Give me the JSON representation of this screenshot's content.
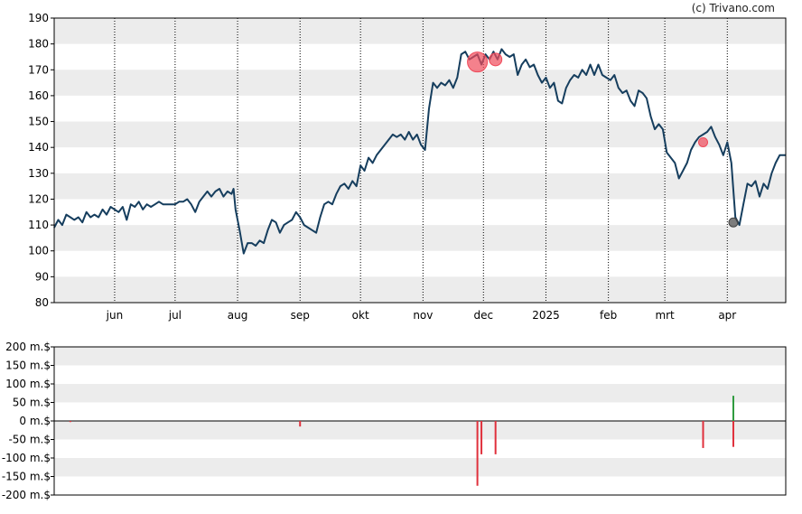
{
  "copyright": "(c) Trivano.com",
  "chart_data": [
    {
      "type": "line",
      "title": "",
      "xlabel": "",
      "ylabel": "",
      "ylim": [
        80,
        190
      ],
      "yticks": [
        80,
        90,
        100,
        110,
        120,
        130,
        140,
        150,
        160,
        170,
        180,
        190
      ],
      "xlim": [
        "2024-05-02",
        "2025-04-30"
      ],
      "xticks": [
        {
          "date": "2024-06-01",
          "label": "jun"
        },
        {
          "date": "2024-07-01",
          "label": "jul"
        },
        {
          "date": "2024-08-01",
          "label": "aug"
        },
        {
          "date": "2024-09-01",
          "label": "sep"
        },
        {
          "date": "2024-10-01",
          "label": "okt"
        },
        {
          "date": "2024-11-01",
          "label": "nov"
        },
        {
          "date": "2024-12-01",
          "label": "dec"
        },
        {
          "date": "2025-01-01",
          "label": "2025"
        },
        {
          "date": "2025-02-01",
          "label": "feb"
        },
        {
          "date": "2025-03-01",
          "label": "mrt"
        },
        {
          "date": "2025-04-01",
          "label": "apr"
        }
      ],
      "grid": "horizontal bands, dotted vertical month lines",
      "line_color": "#163e5e",
      "band_color": "#ececec",
      "series": [
        {
          "points": [
            [
              "2024-05-02",
              109
            ],
            [
              "2024-05-04",
              112
            ],
            [
              "2024-05-06",
              110
            ],
            [
              "2024-05-08",
              114
            ],
            [
              "2024-05-10",
              113
            ],
            [
              "2024-05-12",
              112
            ],
            [
              "2024-05-14",
              113
            ],
            [
              "2024-05-16",
              111
            ],
            [
              "2024-05-18",
              115
            ],
            [
              "2024-05-20",
              113
            ],
            [
              "2024-05-22",
              114
            ],
            [
              "2024-05-24",
              113
            ],
            [
              "2024-05-26",
              116
            ],
            [
              "2024-05-28",
              114
            ],
            [
              "2024-05-30",
              117
            ],
            [
              "2024-06-01",
              116
            ],
            [
              "2024-06-03",
              115
            ],
            [
              "2024-06-05",
              117
            ],
            [
              "2024-06-07",
              112
            ],
            [
              "2024-06-09",
              118
            ],
            [
              "2024-06-11",
              117
            ],
            [
              "2024-06-13",
              119
            ],
            [
              "2024-06-15",
              116
            ],
            [
              "2024-06-17",
              118
            ],
            [
              "2024-06-19",
              117
            ],
            [
              "2024-06-21",
              118
            ],
            [
              "2024-06-23",
              119
            ],
            [
              "2024-06-25",
              118
            ],
            [
              "2024-06-27",
              118
            ],
            [
              "2024-06-29",
              118
            ],
            [
              "2024-07-01",
              118
            ],
            [
              "2024-07-03",
              119
            ],
            [
              "2024-07-05",
              119
            ],
            [
              "2024-07-07",
              120
            ],
            [
              "2024-07-09",
              118
            ],
            [
              "2024-07-11",
              115
            ],
            [
              "2024-07-13",
              119
            ],
            [
              "2024-07-15",
              121
            ],
            [
              "2024-07-17",
              123
            ],
            [
              "2024-07-19",
              121
            ],
            [
              "2024-07-21",
              123
            ],
            [
              "2024-07-23",
              124
            ],
            [
              "2024-07-25",
              121
            ],
            [
              "2024-07-27",
              123
            ],
            [
              "2024-07-29",
              122
            ],
            [
              "2024-07-30",
              124
            ],
            [
              "2024-07-31",
              116
            ],
            [
              "2024-08-02",
              108
            ],
            [
              "2024-08-04",
              99
            ],
            [
              "2024-08-06",
              103
            ],
            [
              "2024-08-08",
              103
            ],
            [
              "2024-08-10",
              102
            ],
            [
              "2024-08-12",
              104
            ],
            [
              "2024-08-14",
              103
            ],
            [
              "2024-08-16",
              108
            ],
            [
              "2024-08-18",
              112
            ],
            [
              "2024-08-20",
              111
            ],
            [
              "2024-08-22",
              107
            ],
            [
              "2024-08-24",
              110
            ],
            [
              "2024-08-26",
              111
            ],
            [
              "2024-08-28",
              112
            ],
            [
              "2024-08-30",
              115
            ],
            [
              "2024-09-01",
              113
            ],
            [
              "2024-09-03",
              110
            ],
            [
              "2024-09-05",
              109
            ],
            [
              "2024-09-07",
              108
            ],
            [
              "2024-09-09",
              107
            ],
            [
              "2024-09-11",
              113
            ],
            [
              "2024-09-13",
              118
            ],
            [
              "2024-09-15",
              119
            ],
            [
              "2024-09-17",
              118
            ],
            [
              "2024-09-19",
              122
            ],
            [
              "2024-09-21",
              125
            ],
            [
              "2024-09-23",
              126
            ],
            [
              "2024-09-25",
              124
            ],
            [
              "2024-09-27",
              127
            ],
            [
              "2024-09-29",
              125
            ],
            [
              "2024-10-01",
              133
            ],
            [
              "2024-10-03",
              131
            ],
            [
              "2024-10-05",
              136
            ],
            [
              "2024-10-07",
              134
            ],
            [
              "2024-10-09",
              137
            ],
            [
              "2024-10-11",
              139
            ],
            [
              "2024-10-13",
              141
            ],
            [
              "2024-10-15",
              143
            ],
            [
              "2024-10-17",
              145
            ],
            [
              "2024-10-19",
              144
            ],
            [
              "2024-10-21",
              145
            ],
            [
              "2024-10-23",
              143
            ],
            [
              "2024-10-25",
              146
            ],
            [
              "2024-10-27",
              143
            ],
            [
              "2024-10-29",
              145
            ],
            [
              "2024-10-31",
              141
            ],
            [
              "2024-11-02",
              139
            ],
            [
              "2024-11-04",
              155
            ],
            [
              "2024-11-06",
              165
            ],
            [
              "2024-11-08",
              163
            ],
            [
              "2024-11-10",
              165
            ],
            [
              "2024-11-12",
              164
            ],
            [
              "2024-11-14",
              166
            ],
            [
              "2024-11-16",
              163
            ],
            [
              "2024-11-18",
              167
            ],
            [
              "2024-11-20",
              176
            ],
            [
              "2024-11-22",
              177
            ],
            [
              "2024-11-24",
              174
            ],
            [
              "2024-11-26",
              175
            ],
            [
              "2024-11-28",
              176
            ],
            [
              "2024-11-30",
              172
            ],
            [
              "2024-12-02",
              176
            ],
            [
              "2024-12-04",
              174
            ],
            [
              "2024-12-06",
              177
            ],
            [
              "2024-12-08",
              174
            ],
            [
              "2024-12-10",
              178
            ],
            [
              "2024-12-12",
              176
            ],
            [
              "2024-12-14",
              175
            ],
            [
              "2024-12-16",
              176
            ],
            [
              "2024-12-18",
              168
            ],
            [
              "2024-12-20",
              172
            ],
            [
              "2024-12-22",
              174
            ],
            [
              "2024-12-24",
              171
            ],
            [
              "2024-12-26",
              172
            ],
            [
              "2024-12-28",
              168
            ],
            [
              "2024-12-30",
              165
            ],
            [
              "2025-01-01",
              167
            ],
            [
              "2025-01-03",
              163
            ],
            [
              "2025-01-05",
              165
            ],
            [
              "2025-01-07",
              158
            ],
            [
              "2025-01-09",
              157
            ],
            [
              "2025-01-11",
              163
            ],
            [
              "2025-01-13",
              166
            ],
            [
              "2025-01-15",
              168
            ],
            [
              "2025-01-17",
              167
            ],
            [
              "2025-01-19",
              170
            ],
            [
              "2025-01-21",
              168
            ],
            [
              "2025-01-23",
              172
            ],
            [
              "2025-01-25",
              168
            ],
            [
              "2025-01-27",
              172
            ],
            [
              "2025-01-29",
              168
            ],
            [
              "2025-01-31",
              167
            ],
            [
              "2025-02-02",
              166
            ],
            [
              "2025-02-04",
              168
            ],
            [
              "2025-02-06",
              163
            ],
            [
              "2025-02-08",
              161
            ],
            [
              "2025-02-10",
              162
            ],
            [
              "2025-02-12",
              158
            ],
            [
              "2025-02-14",
              156
            ],
            [
              "2025-02-16",
              162
            ],
            [
              "2025-02-18",
              161
            ],
            [
              "2025-02-20",
              159
            ],
            [
              "2025-02-22",
              152
            ],
            [
              "2025-02-24",
              147
            ],
            [
              "2025-02-26",
              149
            ],
            [
              "2025-02-28",
              147
            ],
            [
              "2025-03-02",
              138
            ],
            [
              "2025-03-04",
              136
            ],
            [
              "2025-03-06",
              134
            ],
            [
              "2025-03-08",
              128
            ],
            [
              "2025-03-10",
              131
            ],
            [
              "2025-03-12",
              134
            ],
            [
              "2025-03-14",
              139
            ],
            [
              "2025-03-16",
              142
            ],
            [
              "2025-03-18",
              144
            ],
            [
              "2025-03-20",
              145
            ],
            [
              "2025-03-22",
              146
            ],
            [
              "2025-03-24",
              148
            ],
            [
              "2025-03-26",
              144
            ],
            [
              "2025-03-28",
              141
            ],
            [
              "2025-03-30",
              137
            ],
            [
              "2025-04-01",
              142
            ],
            [
              "2025-04-03",
              134
            ],
            [
              "2025-04-05",
              113
            ],
            [
              "2025-04-07",
              110
            ],
            [
              "2025-04-09",
              118
            ],
            [
              "2025-04-11",
              126
            ],
            [
              "2025-04-13",
              125
            ],
            [
              "2025-04-15",
              127
            ],
            [
              "2025-04-17",
              121
            ],
            [
              "2025-04-19",
              126
            ],
            [
              "2025-04-21",
              124
            ],
            [
              "2025-04-23",
              130
            ],
            [
              "2025-04-25",
              134
            ],
            [
              "2025-04-27",
              137
            ],
            [
              "2025-04-30",
              137
            ]
          ]
        }
      ],
      "markers": [
        {
          "date": "2024-11-28",
          "value": 173,
          "color": "#f04b5b",
          "size": "large"
        },
        {
          "date": "2024-12-07",
          "value": 174,
          "color": "#f04b5b",
          "size": "medium"
        },
        {
          "date": "2025-03-20",
          "value": 142,
          "color": "#f04b5b",
          "size": "small"
        },
        {
          "date": "2025-04-04",
          "value": 111,
          "color": "#444444",
          "size": "small"
        }
      ]
    },
    {
      "type": "bar",
      "title": "",
      "ylim": [
        -200,
        200
      ],
      "yticks": [
        {
          "value": -200,
          "label": "-200 m.$"
        },
        {
          "value": -150,
          "label": "-150 m.$"
        },
        {
          "value": -100,
          "label": "-100 m.$"
        },
        {
          "value": -50,
          "label": "-50 m.$"
        },
        {
          "value": 0,
          "label": "0 m.$"
        },
        {
          "value": 50,
          "label": "50 m.$"
        },
        {
          "value": 100,
          "label": "100 m.$"
        },
        {
          "value": 150,
          "label": "150 m.$"
        },
        {
          "value": 200,
          "label": "200 m.$"
        }
      ],
      "grid": "horizontal bands",
      "negative_color": "#e0303c",
      "positive_color": "#2e9a3e",
      "bars": [
        {
          "date": "2024-05-10",
          "value": -3
        },
        {
          "date": "2024-09-01",
          "value": -15
        },
        {
          "date": "2024-11-28",
          "value": -175
        },
        {
          "date": "2024-11-30",
          "value": -90
        },
        {
          "date": "2024-12-07",
          "value": -90
        },
        {
          "date": "2025-03-20",
          "value": -73
        },
        {
          "date": "2025-04-04",
          "value": 68
        },
        {
          "date": "2025-04-04",
          "value": -70
        }
      ]
    }
  ]
}
